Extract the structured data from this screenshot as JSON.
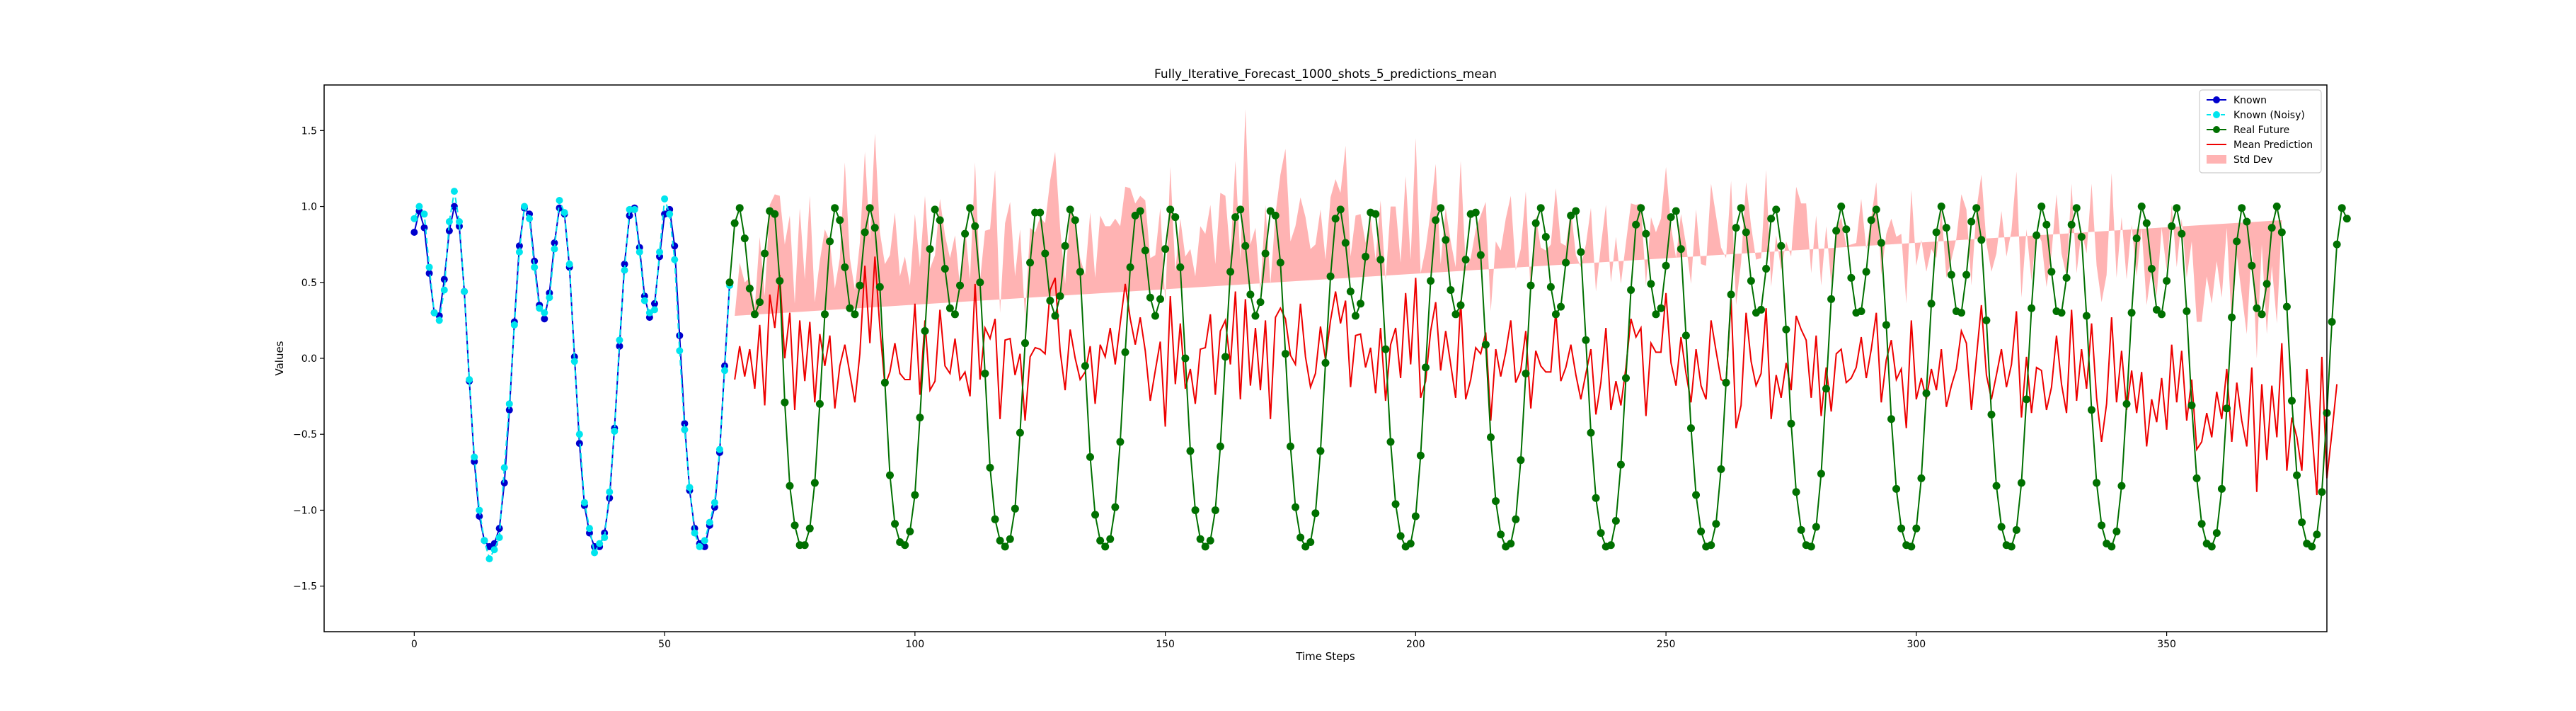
{
  "chart_data": {
    "type": "line",
    "title": "Fully_Iterative_Forecast_1000_shots_5_predictions_mean",
    "xlabel": "Time Steps",
    "ylabel": "Values",
    "xlim": [
      -18,
      382
    ],
    "ylim": [
      -1.8,
      1.8
    ],
    "xticks": [
      0,
      50,
      100,
      150,
      200,
      250,
      300,
      350
    ],
    "yticks": [
      -1.5,
      -1.0,
      -0.5,
      0.0,
      0.5,
      1.0,
      1.5
    ],
    "xtick_labels": [
      "0",
      "50",
      "100",
      "150",
      "200",
      "250",
      "300",
      "350"
    ],
    "ytick_labels": [
      "−1.5",
      "−1.0",
      "−0.5",
      "0.0",
      "0.5",
      "1.0",
      "1.5"
    ],
    "grid": false,
    "legend_position": "top-right",
    "colors": {
      "known": "#0000cd",
      "known_noisy": "#00e5ee",
      "real_future": "#007000",
      "mean_prediction": "#ee0000",
      "std_dev": "#ff9a9a"
    },
    "series": [
      {
        "name": "Known",
        "x_start": 0,
        "values": [
          0.83,
          0.97,
          0.86,
          0.56,
          0.3,
          0.28,
          0.52,
          0.84,
          1.0,
          0.87,
          0.44,
          -0.15,
          -0.68,
          -1.04,
          -1.2,
          -1.24,
          -1.22,
          -1.12,
          -0.82,
          -0.34,
          0.24,
          0.74,
          0.99,
          0.95,
          0.64,
          0.35,
          0.26,
          0.43,
          0.76,
          0.99,
          0.95,
          0.6,
          0.01,
          -0.56,
          -0.97,
          -1.15,
          -1.24,
          -1.24,
          -1.15,
          -0.92,
          -0.46,
          0.08,
          0.62,
          0.94,
          0.99,
          0.73,
          0.41,
          0.27,
          0.36,
          0.67,
          0.95,
          0.98,
          0.74,
          0.15,
          -0.43,
          -0.87,
          -1.12,
          -1.22,
          -1.24,
          -1.1,
          -0.98,
          -0.62,
          -0.05,
          0.5
        ]
      },
      {
        "name": "Known (Noisy)",
        "x_start": 0,
        "values": [
          0.92,
          1.0,
          0.95,
          0.6,
          0.3,
          0.25,
          0.45,
          0.9,
          1.1,
          0.9,
          0.44,
          -0.14,
          -0.65,
          -1.0,
          -1.2,
          -1.32,
          -1.26,
          -1.18,
          -0.72,
          -0.3,
          0.22,
          0.7,
          1.0,
          0.92,
          0.6,
          0.33,
          0.3,
          0.4,
          0.72,
          1.04,
          0.96,
          0.62,
          -0.02,
          -0.5,
          -0.95,
          -1.12,
          -1.28,
          -1.22,
          -1.18,
          -0.88,
          -0.48,
          0.12,
          0.58,
          0.98,
          0.98,
          0.7,
          0.38,
          0.3,
          0.32,
          0.7,
          1.05,
          0.95,
          0.65,
          0.05,
          -0.47,
          -0.85,
          -1.15,
          -1.24,
          -1.2,
          -1.08,
          -0.95,
          -0.6,
          -0.08,
          0.48
        ]
      },
      {
        "name": "Real Future",
        "x_start": 63,
        "values": [
          0.5,
          0.89,
          0.99,
          0.79,
          0.46,
          0.29,
          0.37,
          0.69,
          0.97,
          0.95,
          0.51,
          -0.29,
          -0.84,
          -1.1,
          -1.23,
          -1.23,
          -1.12,
          -0.82,
          -0.3,
          0.29,
          0.77,
          0.99,
          0.91,
          0.6,
          0.33,
          0.29,
          0.48,
          0.83,
          0.99,
          0.86,
          0.47,
          -0.16,
          -0.77,
          -1.09,
          -1.21,
          -1.23,
          -1.14,
          -0.9,
          -0.39,
          0.18,
          0.72,
          0.98,
          0.91,
          0.59,
          0.33,
          0.29,
          0.48,
          0.82,
          0.99,
          0.87,
          0.5,
          -0.1,
          -0.72,
          -1.06,
          -1.2,
          -1.24,
          -1.19,
          -0.99,
          -0.49,
          0.1,
          0.63,
          0.96,
          0.96,
          0.69,
          0.38,
          0.28,
          0.41,
          0.74,
          0.98,
          0.91,
          0.57,
          -0.05,
          -0.65,
          -1.03,
          -1.2,
          -1.24,
          -1.19,
          -0.98,
          -0.55,
          0.04,
          0.6,
          0.94,
          0.97,
          0.71,
          0.4,
          0.28,
          0.39,
          0.72,
          0.98,
          0.93,
          0.6,
          0.0,
          -0.61,
          -1.0,
          -1.19,
          -1.24,
          -1.2,
          -1.0,
          -0.58,
          0.01,
          0.57,
          0.93,
          0.98,
          0.74,
          0.42,
          0.28,
          0.37,
          0.69,
          0.97,
          0.94,
          0.63,
          0.03,
          -0.58,
          -0.98,
          -1.18,
          -1.24,
          -1.21,
          -1.02,
          -0.61,
          -0.03,
          0.54,
          0.92,
          0.98,
          0.76,
          0.44,
          0.28,
          0.36,
          0.67,
          0.96,
          0.95,
          0.65,
          0.06,
          -0.55,
          -0.96,
          -1.17,
          -1.24,
          -1.22,
          -1.04,
          -0.64,
          -0.06,
          0.51,
          0.91,
          0.99,
          0.78,
          0.45,
          0.29,
          0.35,
          0.65,
          0.95,
          0.96,
          0.68,
          0.09,
          -0.52,
          -0.94,
          -1.16,
          -1.24,
          -1.22,
          -1.06,
          -0.67,
          -0.1,
          0.48,
          0.89,
          0.99,
          0.8,
          0.47,
          0.29,
          0.34,
          0.63,
          0.94,
          0.97,
          0.7,
          0.12,
          -0.49,
          -0.92,
          -1.15,
          -1.24,
          -1.23,
          -1.07,
          -0.7,
          -0.13,
          0.45,
          0.88,
          0.99,
          0.82,
          0.49,
          0.29,
          0.33,
          0.61,
          0.93,
          0.97,
          0.72,
          0.15,
          -0.46,
          -0.9,
          -1.14,
          -1.24,
          -1.23,
          -1.09,
          -0.73,
          -0.16,
          0.42,
          0.86,
          0.99,
          0.83,
          0.51,
          0.3,
          0.32,
          0.59,
          0.92,
          0.98,
          0.74,
          0.19,
          -0.43,
          -0.88,
          -1.13,
          -1.23,
          -1.24,
          -1.11,
          -0.76,
          -0.2,
          0.39,
          0.84,
          1.0,
          0.85,
          0.53,
          0.3,
          0.31,
          0.57,
          0.91,
          0.98,
          0.76,
          0.22,
          -0.4,
          -0.86,
          -1.12,
          -1.23,
          -1.24,
          -1.12,
          -0.79,
          -0.23,
          0.36,
          0.83,
          1.0,
          0.86,
          0.55,
          0.31,
          0.3,
          0.55,
          0.9,
          0.99,
          0.78,
          0.25,
          -0.37,
          -0.84,
          -1.11,
          -1.23,
          -1.24,
          -1.13,
          -0.82,
          -0.27,
          0.33,
          0.81,
          1.0,
          0.88,
          0.57,
          0.31,
          0.3,
          0.53,
          0.88,
          0.99,
          0.8,
          0.28,
          -0.34,
          -0.82,
          -1.1,
          -1.22,
          -1.24,
          -1.14,
          -0.84,
          -0.3,
          0.3,
          0.79,
          1.0,
          0.89,
          0.59,
          0.32,
          0.29,
          0.51,
          0.87,
          0.99,
          0.82,
          0.31,
          -0.31,
          -0.79,
          -1.09,
          -1.22,
          -1.24,
          -1.15,
          -0.86,
          -0.33,
          0.27,
          0.77,
          0.99,
          0.9,
          0.61,
          0.33,
          0.29,
          0.49,
          0.86,
          1.0,
          0.83,
          0.34,
          -0.28,
          -0.77,
          -1.08,
          -1.22,
          -1.24,
          -1.16,
          -0.88,
          -0.36,
          0.24,
          0.75,
          0.99,
          0.92
        ]
      },
      {
        "name": "Mean Prediction",
        "x_start": 64,
        "values": [
          -0.14,
          0.08,
          -0.12,
          0.06,
          -0.2,
          0.22,
          -0.31,
          0.42,
          0.2,
          0.55,
          0.0,
          0.3,
          -0.34,
          0.25,
          -0.15,
          0.24,
          -0.29,
          0.16,
          -0.05,
          0.15,
          -0.33,
          -0.05,
          0.09,
          -0.1,
          -0.29,
          0.03,
          0.61,
          0.1,
          0.67,
          0.2,
          -0.18,
          -0.09,
          0.1,
          -0.1,
          -0.14,
          -0.14,
          0.36,
          -0.24,
          0.25,
          -0.21,
          -0.15,
          0.32,
          -0.05,
          -0.1,
          0.13,
          -0.14,
          -0.09,
          -0.25,
          0.49,
          -0.14,
          0.2,
          0.13,
          0.26,
          -0.4,
          0.12,
          0.13,
          -0.11,
          0.03,
          -0.41,
          0.01,
          0.07,
          0.06,
          0.03,
          0.45,
          0.53,
          0.05,
          -0.21,
          0.19,
          0.0,
          -0.14,
          -0.09,
          0.08,
          -0.3,
          0.09,
          0.01,
          0.2,
          -0.04,
          0.23,
          0.49,
          0.26,
          0.09,
          0.27,
          0.05,
          -0.28,
          -0.08,
          0.11,
          -0.45,
          0.41,
          -0.17,
          0.23,
          -0.2,
          -0.07,
          -0.3,
          0.06,
          0.07,
          0.29,
          -0.24,
          0.18,
          0.25,
          -0.04,
          0.44,
          -0.27,
          0.39,
          -0.18,
          0.2,
          -0.21,
          0.25,
          -0.4,
          0.27,
          0.33,
          0.26,
          0.02,
          -0.04,
          0.36,
          0.01,
          -0.19,
          -0.1,
          0.21,
          -0.01,
          0.25,
          0.44,
          0.23,
          0.38,
          -0.19,
          0.15,
          0.16,
          -0.06,
          0.07,
          -0.23,
          0.2,
          -0.28,
          0.09,
          0.2,
          -0.13,
          0.43,
          -0.04,
          0.53,
          -0.26,
          -0.15,
          0.18,
          0.37,
          -0.08,
          0.18,
          -0.04,
          -0.26,
          0.38,
          -0.27,
          -0.14,
          0.07,
          0.03,
          0.17,
          -0.41,
          0.06,
          -0.12,
          0.04,
          0.25,
          -0.16,
          -0.08,
          0.18,
          -0.33,
          0.05,
          -0.05,
          -0.09,
          -0.09,
          0.31,
          -0.15,
          -0.06,
          0.09,
          -0.11,
          -0.27,
          -0.1,
          0.06,
          -0.37,
          -0.16,
          0.2,
          -0.34,
          -0.15,
          -0.31,
          -0.06,
          0.26,
          0.14,
          0.2,
          -0.38,
          0.1,
          0.04,
          0.04,
          0.43,
          -0.03,
          -0.18,
          0.14,
          -0.1,
          -0.29,
          0.06,
          -0.18,
          -0.27,
          0.25,
          0.05,
          -0.14,
          -0.16,
          0.39,
          -0.46,
          -0.31,
          0.3,
          -0.02,
          -0.18,
          -0.1,
          0.33,
          -0.4,
          -0.11,
          -0.26,
          -0.03,
          -0.21,
          0.28,
          0.19,
          0.12,
          -0.26,
          0.15,
          -0.38,
          -0.06,
          -0.35,
          0.03,
          0.06,
          -0.16,
          -0.13,
          -0.06,
          0.14,
          -0.13,
          0.06,
          0.3,
          -0.29,
          -0.01,
          0.12,
          -0.14,
          -0.07,
          -0.46,
          0.25,
          -0.27,
          -0.13,
          -0.27,
          -0.07,
          -0.21,
          0.06,
          -0.32,
          -0.18,
          -0.07,
          0.18,
          0.1,
          -0.34,
          0.01,
          0.35,
          -0.11,
          -0.27,
          -0.11,
          0.06,
          -0.19,
          -0.04,
          0.31,
          -0.39,
          0.01,
          -0.36,
          -0.06,
          -0.08,
          -0.34,
          -0.19,
          0.15,
          -0.17,
          -0.36,
          0.32,
          -0.28,
          0.06,
          -0.2,
          0.23,
          -0.26,
          -0.55,
          -0.3,
          0.27,
          -0.29,
          0.05,
          -0.34,
          -0.08,
          -0.36,
          -0.09,
          -0.58,
          -0.27,
          -0.42,
          -0.13,
          -0.47,
          0.09,
          -0.29,
          0.05,
          -0.41,
          -0.14,
          -0.6,
          -0.55,
          -0.36,
          -0.52,
          -0.22,
          -0.4,
          -0.07,
          -0.55,
          -0.16,
          -0.41,
          -0.58,
          -0.06,
          -0.88,
          -0.17,
          -0.67,
          -0.18,
          -0.52,
          0.1,
          -0.74,
          -0.39,
          -0.52,
          -0.74,
          -0.07,
          -0.48,
          -0.9,
          0.01,
          -0.79,
          -0.49,
          -0.17
        ]
      },
      {
        "name": "Std Dev",
        "x_start": 64,
        "half_width": [
          0.42,
          0.55,
          0.62,
          0.47,
          0.53,
          0.58,
          0.72,
          0.59,
          0.88,
          0.52,
          0.75,
          0.64,
          0.7,
          0.74,
          0.67,
          0.83,
          0.66,
          0.48,
          0.9,
          0.62,
          0.79,
          0.71,
          1.2,
          0.76,
          0.74,
          0.73,
          0.75,
          0.68,
          0.81,
          0.63,
          0.8,
          0.77,
          0.86,
          0.64,
          0.81,
          0.62,
          0.59,
          0.84,
          0.82,
          0.8,
          0.83,
          0.73,
          0.86,
          0.76,
          0.68,
          0.61,
          0.96,
          0.77,
          0.8,
          0.65,
          0.64,
          0.72,
          0.98,
          0.7,
          0.77,
          0.9,
          0.65,
          0.82,
          0.67,
          0.85,
          0.76,
          0.87,
          0.86,
          0.72,
          0.83,
          0.81,
          0.7,
          0.78,
          0.92,
          0.8,
          0.64,
          0.88,
          0.83,
          0.85,
          0.86,
          0.67,
          0.96,
          0.64,
          0.64,
          0.86,
          0.93,
          0.8,
          0.99,
          0.94,
          0.76,
          0.88,
          0.82,
          0.85,
          0.74,
          0.69,
          0.87,
          0.79,
          0.84,
          0.81,
          0.75,
          0.72,
          0.86,
          0.91,
          0.82,
          0.71,
          0.86,
          0.92,
          1.25,
          0.93,
          0.66,
          0.65,
          0.76,
          0.89,
          0.68,
          0.88,
          1.12,
          0.75,
          0.91,
          0.7,
          0.92,
          0.91,
          0.85,
          0.77,
          0.66,
          0.81,
          0.74,
          0.86,
          1.02,
          0.86,
          0.79,
          0.79,
          0.82,
          0.86,
          0.88,
          0.84,
          0.79,
          0.91,
          0.8,
          0.76,
          0.77,
          0.69,
          0.92,
          0.82,
          0.87,
          0.79,
          0.91,
          0.7,
          0.81,
          0.81,
          0.86,
          0.92,
          0.87,
          0.8,
          0.78,
          0.91,
          0.86,
          0.72,
          0.71,
          0.83,
          0.88,
          0.82,
          0.74,
          0.8,
          0.92,
          0.73,
          0.89,
          0.78,
          0.8,
          0.84,
          0.81,
          0.91,
          0.8,
          0.89,
          0.79,
          0.87,
          0.85,
          0.93,
          0.81,
          0.9,
          0.81,
          0.84,
          0.95,
          0.8,
          0.82,
          0.76,
          0.87,
          0.82,
          0.86,
          0.83,
          0.79,
          0.88,
          0.83,
          0.9,
          0.84,
          0.81,
          0.85,
          0.78,
          0.92,
          0.8,
          0.88,
          0.9,
          0.89,
          0.87,
          0.82,
          0.78,
          0.81,
          0.94,
          0.86,
          0.89,
          0.83,
          0.76,
          0.91,
          0.87,
          0.92,
          0.84,
          0.8,
          0.88,
          0.85,
          0.83,
          0.9,
          0.82,
          0.79,
          0.86,
          0.93,
          0.84,
          0.81,
          0.87,
          0.9,
          0.88,
          0.82,
          0.91,
          0.85,
          0.87,
          0.86,
          0.84,
          0.83,
          0.8,
          0.94,
          0.89,
          0.82,
          0.86,
          0.88,
          0.91,
          0.84,
          0.79,
          0.87,
          0.92,
          0.85,
          0.83,
          0.86,
          0.9,
          0.88,
          0.82,
          0.97,
          0.86,
          0.87,
          0.84,
          0.8,
          0.91,
          0.86,
          0.88,
          0.92,
          0.79,
          0.84,
          0.87,
          0.9,
          0.85,
          0.81,
          0.88,
          0.93,
          0.86,
          0.9,
          0.83,
          0.84,
          0.78,
          0.89,
          0.92,
          0.87,
          0.92,
          0.85,
          0.95,
          0.82,
          0.88,
          0.86,
          0.96,
          0.9,
          0.95,
          0.93,
          0.86,
          0.83,
          0.99,
          1.05,
          0.92,
          0.89,
          0.87,
          0.94,
          0.91,
          0.84,
          0.79,
          0.9,
          0.88,
          0.86,
          0.8,
          0.93,
          0.76,
          0.84,
          0.83,
          0.74,
          0.81,
          0.88,
          0.92,
          0.83,
          0.79,
          0.75,
          0.81
        ]
      }
    ],
    "legend": [
      {
        "label": "Known",
        "marker": "circle",
        "line": "solid",
        "color_key": "known"
      },
      {
        "label": "Known (Noisy)",
        "marker": "circle",
        "line": "dashed",
        "color_key": "known_noisy"
      },
      {
        "label": "Real Future",
        "marker": "circle",
        "line": "solid",
        "color_key": "real_future"
      },
      {
        "label": "Mean Prediction",
        "marker": "none",
        "line": "solid",
        "color_key": "mean_prediction"
      },
      {
        "label": "Std Dev",
        "marker": "patch",
        "line": "none",
        "color_key": "std_dev"
      }
    ]
  }
}
